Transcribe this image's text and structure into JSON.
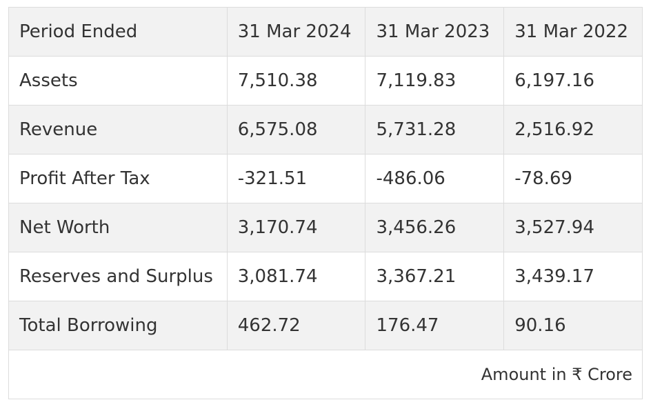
{
  "table": {
    "header": [
      "Period Ended",
      "31 Mar 2024",
      "31 Mar 2023",
      "31 Mar 2022"
    ],
    "rows": [
      [
        "Assets",
        "7,510.38",
        "7,119.83",
        "6,197.16"
      ],
      [
        "Revenue",
        "6,575.08",
        "5,731.28",
        "2,516.92"
      ],
      [
        "Profit After Tax",
        "-321.51",
        "-486.06",
        "-78.69"
      ],
      [
        "Net Worth",
        "3,170.74",
        "3,456.26",
        "3,527.94"
      ],
      [
        "Reserves and Surplus",
        "3,081.74",
        "3,367.21",
        "3,439.17"
      ],
      [
        "Total Borrowing",
        "462.72",
        "176.47",
        "90.16"
      ]
    ],
    "note": "Amount in ₹ Crore"
  }
}
